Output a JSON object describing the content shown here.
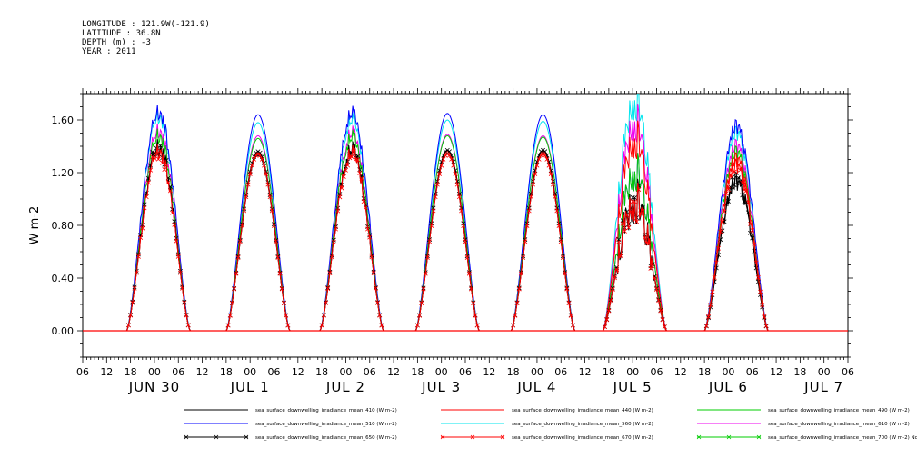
{
  "header": {
    "longitude": "LONGITUDE : 121.9W(-121.9)",
    "latitude": "LATITUDE : 36.8N",
    "depth": "DEPTH (m) : -3",
    "year": "YEAR : 2011"
  },
  "chart_data": {
    "type": "line",
    "ylabel": "W m-2",
    "ylim": [
      -0.2,
      1.8
    ],
    "yticks": [
      0.0,
      0.4,
      0.8,
      1.2,
      1.6
    ],
    "ytick_labels": [
      "0.00",
      "0.40",
      "0.80",
      "1.20",
      "1.60"
    ],
    "x_hour_labels": [
      "06",
      "12",
      "18",
      "00",
      "06",
      "12",
      "18",
      "00",
      "06",
      "12",
      "18",
      "00",
      "06",
      "12",
      "18",
      "00",
      "06",
      "12",
      "18",
      "00",
      "06",
      "12",
      "18",
      "00",
      "06",
      "12",
      "18",
      "00",
      "06",
      "12",
      "18",
      "00",
      "06"
    ],
    "x_date_labels": [
      "JUN 30",
      "JUL 1",
      "JUL 2",
      "JUL 3",
      "JUL 4",
      "JUL 5",
      "JUL 6",
      "JUL 7"
    ],
    "grid": false,
    "legend_position": "bottom",
    "days": [
      {
        "peak_hour": 19,
        "peaks": {
          "410": 1.38,
          "440": 1.38,
          "490": 1.48,
          "510": 1.66,
          "560": 1.63,
          "610": 1.52,
          "650": 1.4,
          "670": 1.36
        }
      },
      {
        "peak_hour": 20,
        "peaks": {
          "410": 1.33,
          "440": 1.35,
          "490": 1.46,
          "510": 1.64,
          "560": 1.58,
          "610": 1.48,
          "650": 1.36,
          "670": 1.34
        }
      },
      {
        "peak_hour": 19.5,
        "peaks": {
          "410": 1.35,
          "440": 1.37,
          "490": 1.47,
          "510": 1.65,
          "560": 1.6,
          "610": 1.5,
          "650": 1.38,
          "670": 1.35
        }
      },
      {
        "peak_hour": 19.5,
        "peaks": {
          "410": 1.34,
          "440": 1.36,
          "490": 1.48,
          "510": 1.65,
          "560": 1.6,
          "610": 1.49,
          "650": 1.37,
          "670": 1.34
        }
      },
      {
        "peak_hour": 19.5,
        "peaks": {
          "410": 1.34,
          "440": 1.36,
          "490": 1.47,
          "510": 1.64,
          "560": 1.59,
          "610": 1.48,
          "650": 1.37,
          "670": 1.34
        }
      },
      {
        "peak_hour": 18.5,
        "peaks": {
          "410": 0.95,
          "440": 1.45,
          "490": 1.2,
          "510": 1.2,
          "560": 1.74,
          "610": 1.58,
          "650": 1.0,
          "670": 0.97
        }
      },
      {
        "peak_hour": 20,
        "peaks": {
          "410": 1.12,
          "440": 1.3,
          "490": 1.35,
          "510": 1.55,
          "560": 1.5,
          "610": 1.4,
          "650": 1.15,
          "670": 1.25
        }
      }
    ],
    "series": [
      {
        "key": "410",
        "name": "sea_surface_downwelling_irradiance_mean_410 (W m-2)",
        "color": "#000000",
        "marker": "none"
      },
      {
        "key": "440",
        "name": "sea_surface_downwelling_irradiance_mean_440 (W m-2)",
        "color": "#ff0000",
        "marker": "none"
      },
      {
        "key": "490",
        "name": "sea_surface_downwelling_irradiance_mean_490 (W m-2)",
        "color": "#00cc00",
        "marker": "none"
      },
      {
        "key": "510",
        "name": "sea_surface_downwelling_irradiance_mean_510 (W m-2)",
        "color": "#0000ff",
        "marker": "none"
      },
      {
        "key": "560",
        "name": "sea_surface_downwelling_irradiance_mean_560 (W m-2)",
        "color": "#00e5ee",
        "marker": "none"
      },
      {
        "key": "610",
        "name": "sea_surface_downwelling_irradiance_mean_610 (W m-2)",
        "color": "#ee00ee",
        "marker": "none"
      },
      {
        "key": "650",
        "name": "sea_surface_downwelling_irradiance_mean_650 (W m-2)",
        "color": "#000000",
        "marker": "x"
      },
      {
        "key": "670",
        "name": "sea_surface_downwelling_irradiance_mean_670 (W m-2)",
        "color": "#ff0000",
        "marker": "x"
      },
      {
        "key": "700",
        "name": "sea_surface_downwelling_irradiance_mean_700 (W m-2) No Valid Data",
        "color": "#00cc00",
        "marker": "x"
      }
    ]
  }
}
